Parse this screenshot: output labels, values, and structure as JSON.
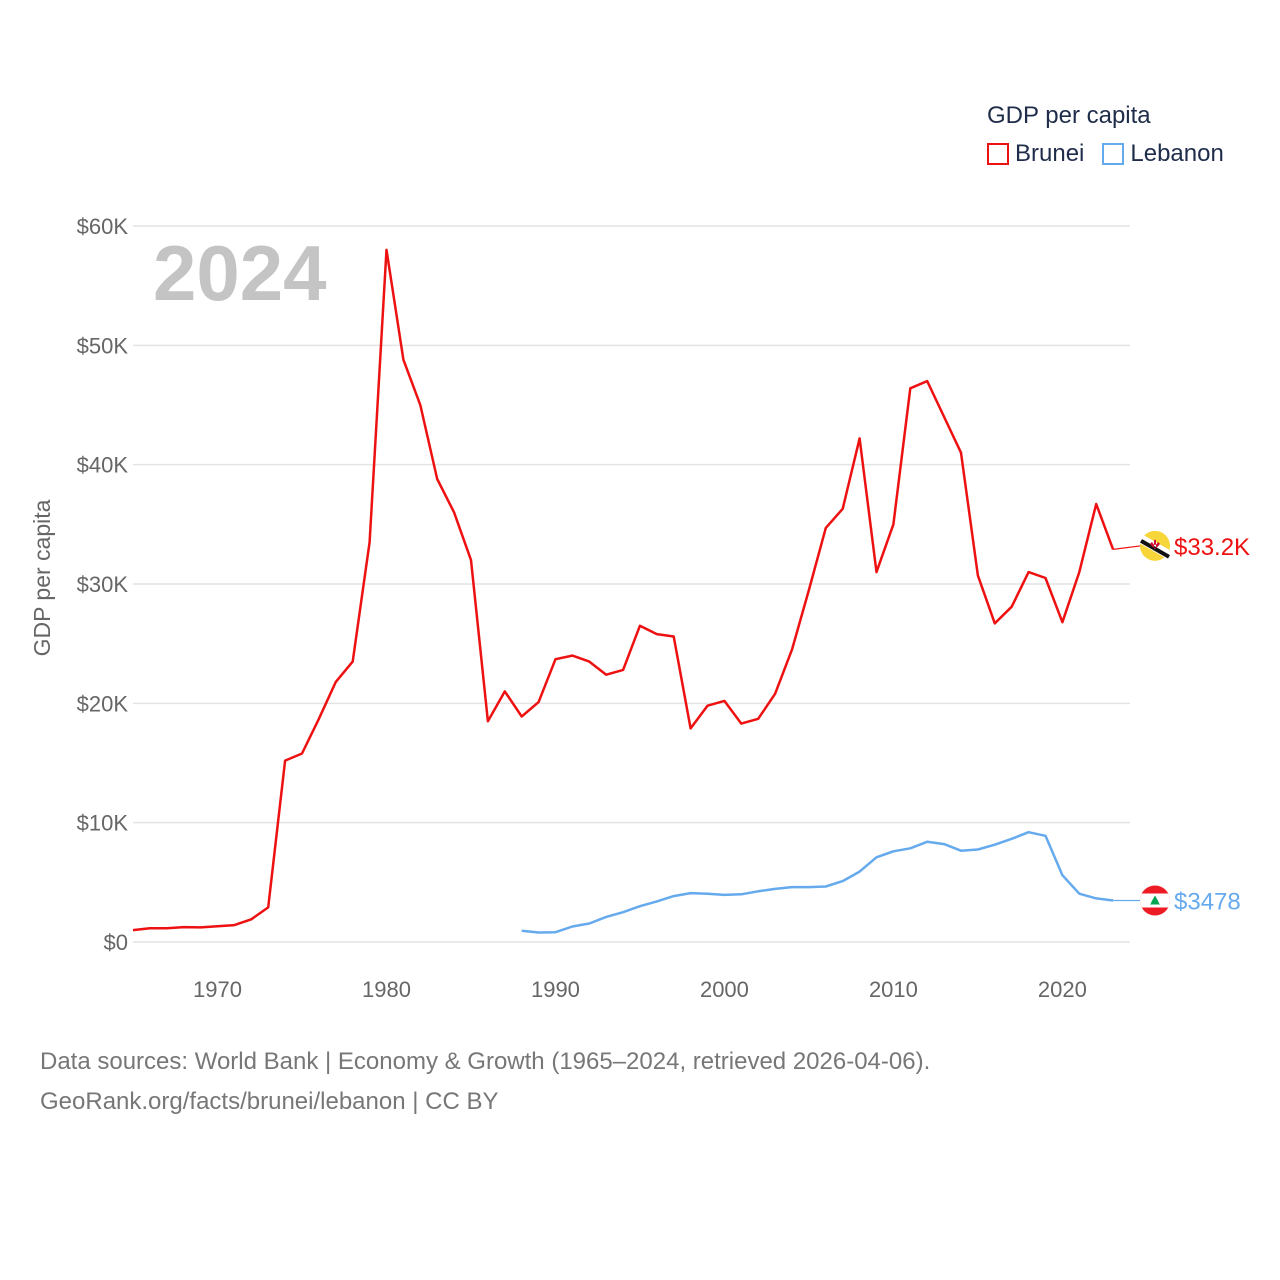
{
  "legend": {
    "title": "GDP per capita",
    "items": [
      {
        "label": "Brunei",
        "color": "#ee1111"
      },
      {
        "label": "Lebanon",
        "color": "#66aaee"
      }
    ]
  },
  "footer": {
    "line1": "Data sources: World Bank | Economy & Growth (1965–2024, retrieved 2026-04-06).",
    "line2": "GeoRank.org/facts/brunei/lebanon | CC BY"
  },
  "chart_data": {
    "type": "line",
    "title": "",
    "year_overlay": "2024",
    "xlabel": "",
    "ylabel": "GDP per capita",
    "xlim": [
      1965,
      2024
    ],
    "ylim": [
      0,
      60000
    ],
    "x_ticks": [
      1970,
      1980,
      1990,
      2000,
      2010,
      2020
    ],
    "x_tick_labels": [
      "1970",
      "1980",
      "1990",
      "2000",
      "2010",
      "2020"
    ],
    "y_ticks": [
      0,
      10000,
      20000,
      30000,
      40000,
      50000,
      60000
    ],
    "y_tick_labels": [
      "$0",
      "$10K",
      "$20K",
      "$30K",
      "$40K",
      "$50K",
      "$60K"
    ],
    "grid": true,
    "legend_position": "top-right",
    "series": [
      {
        "name": "Brunei",
        "color": "#ee1111",
        "end_label": "$33.2K",
        "flag_icon": "brunei-flag-icon",
        "x": [
          1965,
          1966,
          1967,
          1968,
          1969,
          1970,
          1971,
          1972,
          1973,
          1974,
          1975,
          1976,
          1977,
          1978,
          1979,
          1980,
          1981,
          1982,
          1983,
          1984,
          1985,
          1986,
          1987,
          1988,
          1989,
          1990,
          1991,
          1992,
          1993,
          1994,
          1995,
          1996,
          1997,
          1998,
          1999,
          2000,
          2001,
          2002,
          2003,
          2004,
          2005,
          2006,
          2007,
          2008,
          2009,
          2010,
          2011,
          2012,
          2013,
          2014,
          2015,
          2016,
          2017,
          2018,
          2019,
          2020,
          2021,
          2022,
          2023,
          2024
        ],
        "values": [
          1000,
          1150,
          1150,
          1250,
          1220,
          1320,
          1420,
          1900,
          2900,
          15200,
          15800,
          18700,
          21800,
          23500,
          33500,
          58000,
          48800,
          45000,
          38800,
          36000,
          32000,
          18500,
          21000,
          18900,
          20100,
          23700,
          24000,
          23500,
          22400,
          22800,
          26500,
          25800,
          25600,
          17900,
          19800,
          20200,
          18300,
          18700,
          20800,
          24500,
          29500,
          34700,
          36300,
          42200,
          31000,
          35000,
          46400,
          47000,
          44000,
          41000,
          30700,
          26700,
          28100,
          31000,
          30500,
          26800,
          31000,
          36700,
          32900,
          33200
        ]
      },
      {
        "name": "Lebanon",
        "color": "#66aaee",
        "end_label": "$3478",
        "flag_icon": "lebanon-flag-icon",
        "x": [
          1988,
          1989,
          1990,
          1991,
          1992,
          1993,
          1994,
          1995,
          1996,
          1997,
          1998,
          1999,
          2000,
          2001,
          2002,
          2003,
          2004,
          2005,
          2006,
          2007,
          2008,
          2009,
          2010,
          2011,
          2012,
          2013,
          2014,
          2015,
          2016,
          2017,
          2018,
          2019,
          2020,
          2021,
          2022,
          2023,
          2024
        ],
        "values": [
          950,
          800,
          820,
          1300,
          1550,
          2100,
          2500,
          3000,
          3400,
          3850,
          4100,
          4050,
          3950,
          4000,
          4250,
          4450,
          4600,
          4600,
          4650,
          5100,
          5900,
          7100,
          7600,
          7850,
          8400,
          8200,
          7650,
          7750,
          8150,
          8650,
          9200,
          8900,
          5600,
          4050,
          3650,
          3478,
          3478
        ]
      }
    ]
  }
}
